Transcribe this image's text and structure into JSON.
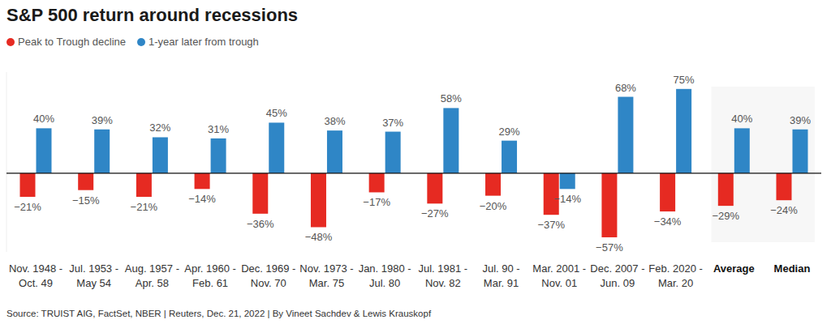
{
  "chart_data": {
    "type": "bar",
    "title": "S&P 500 return around recessions",
    "source": "Source: TRUIST AIG, FactSet, NBER | Reuters, Dec. 21, 2022 | By Vineet Sachdev & Lewis Krauskopf",
    "categories": [
      "Nov. 1948 - Oct. 49",
      "Jul. 1953 - May 54",
      "Aug. 1957 - Apr. 58",
      "Apr. 1960 - Feb. 61",
      "Dec. 1969 - Nov. 70",
      "Nov. 1973 - Mar. 75",
      "Jan. 1980 - Jul. 80",
      "Jul. 1981 - Nov. 82",
      "Jul. 90 - Mar. 91",
      "Mar. 2001 - Nov. 01",
      "Dec. 2007 - Jun. 09",
      "Feb. 2020 - Mar. 20",
      "Average",
      "Median"
    ],
    "series": [
      {
        "name": "Peak to Trough decline",
        "color": "#e62a22",
        "values": [
          -21,
          -15,
          -21,
          -14,
          -36,
          -48,
          -17,
          -27,
          -20,
          -37,
          -57,
          -34,
          -29,
          -24
        ],
        "value_labels": [
          "−21%",
          "−15%",
          "−21%",
          "−14%",
          "−36%",
          "−48%",
          "−17%",
          "−27%",
          "−20%",
          "−37%",
          "−57%",
          "−34%",
          "−29%",
          "−24%"
        ]
      },
      {
        "name": "1-year later from trough",
        "color": "#2f86c6",
        "values": [
          40,
          39,
          32,
          31,
          45,
          38,
          37,
          58,
          29,
          -14,
          68,
          75,
          40,
          39
        ],
        "value_labels": [
          "40%",
          "39%",
          "32%",
          "31%",
          "45%",
          "38%",
          "37%",
          "58%",
          "29%",
          "−14%",
          "68%",
          "75%",
          "40%",
          "39%"
        ]
      }
    ],
    "ylim": [
      -70,
      90
    ],
    "yticks": [
      0
    ],
    "tick_labels": false,
    "data_labels": true,
    "legend": "top-left",
    "grid": false
  }
}
